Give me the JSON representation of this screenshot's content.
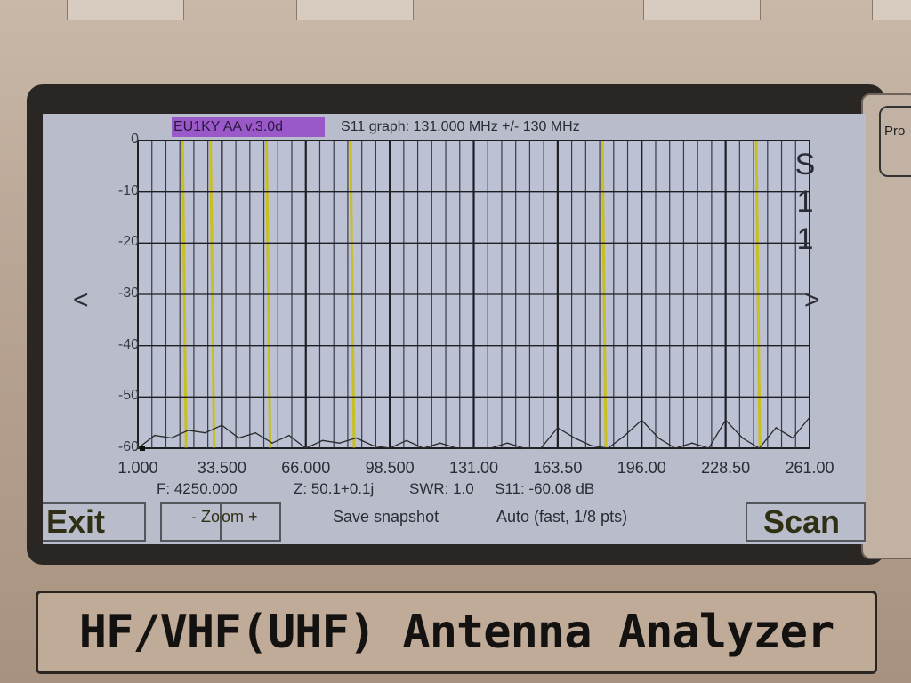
{
  "device": {
    "nameplate": "HF/VHF(UHF) Antenna Analyzer",
    "side_button": "Pro"
  },
  "header": {
    "badge": "EU1KY AA v.3.0d",
    "title": "S11 graph: 131.000 MHz +/- 130 MHz",
    "badge_color": "#9a58c8"
  },
  "side_label": [
    "S",
    "1",
    "1"
  ],
  "nav": {
    "prev": "<",
    "next": ">"
  },
  "status": {
    "freq": "F: 4250.000",
    "impedance": "Z: 50.1+0.1j",
    "swr": "SWR: 1.0",
    "s11": "S11: -60.08 dB"
  },
  "buttons": {
    "exit": "Exit",
    "zoom_minus": "- Zo",
    "zoom_plus": "om +",
    "save": "Save snapshot",
    "auto": "Auto (fast, 1/8 pts)",
    "scan": "Scan"
  },
  "chart_data": {
    "type": "line",
    "title": "S11 graph: 131.000 MHz +/- 130 MHz",
    "xlim": [
      1,
      261
    ],
    "ylim": [
      -60,
      0
    ],
    "x_ticks": [
      "1.000",
      "33.500",
      "66.000",
      "98.500",
      "131.00",
      "163.50",
      "196.00",
      "228.50",
      "261.00"
    ],
    "y_ticks": [
      "0",
      "-10",
      "-20",
      "-30",
      "-40",
      "-50",
      "-60"
    ],
    "grid": true,
    "trace_color": "#2a2a2a",
    "x": [
      1,
      7.5,
      14,
      20.5,
      27,
      33.5,
      40,
      46.5,
      53,
      59.5,
      66,
      72.5,
      79,
      85.5,
      92,
      98.5,
      105,
      111.5,
      118,
      124.5,
      131,
      137.5,
      144,
      150.5,
      157,
      163.5,
      170,
      176.5,
      183,
      189.5,
      196,
      202.5,
      209,
      215.5,
      222,
      228.5,
      235,
      241.5,
      248,
      254.5,
      261
    ],
    "y": [
      -60,
      -57.5,
      -58,
      -56.5,
      -57,
      -55.5,
      -58,
      -57,
      -59,
      -57.5,
      -60,
      -58.5,
      -59,
      -58,
      -59.5,
      -60,
      -58.5,
      -60,
      -59,
      -60,
      -60,
      -60,
      -59,
      -60,
      -60,
      -56,
      -58,
      -59.5,
      -60,
      -57.5,
      -54.5,
      -58,
      -60,
      -59,
      -60,
      -54.5,
      -58,
      -60,
      -56,
      -58,
      -54
    ]
  }
}
